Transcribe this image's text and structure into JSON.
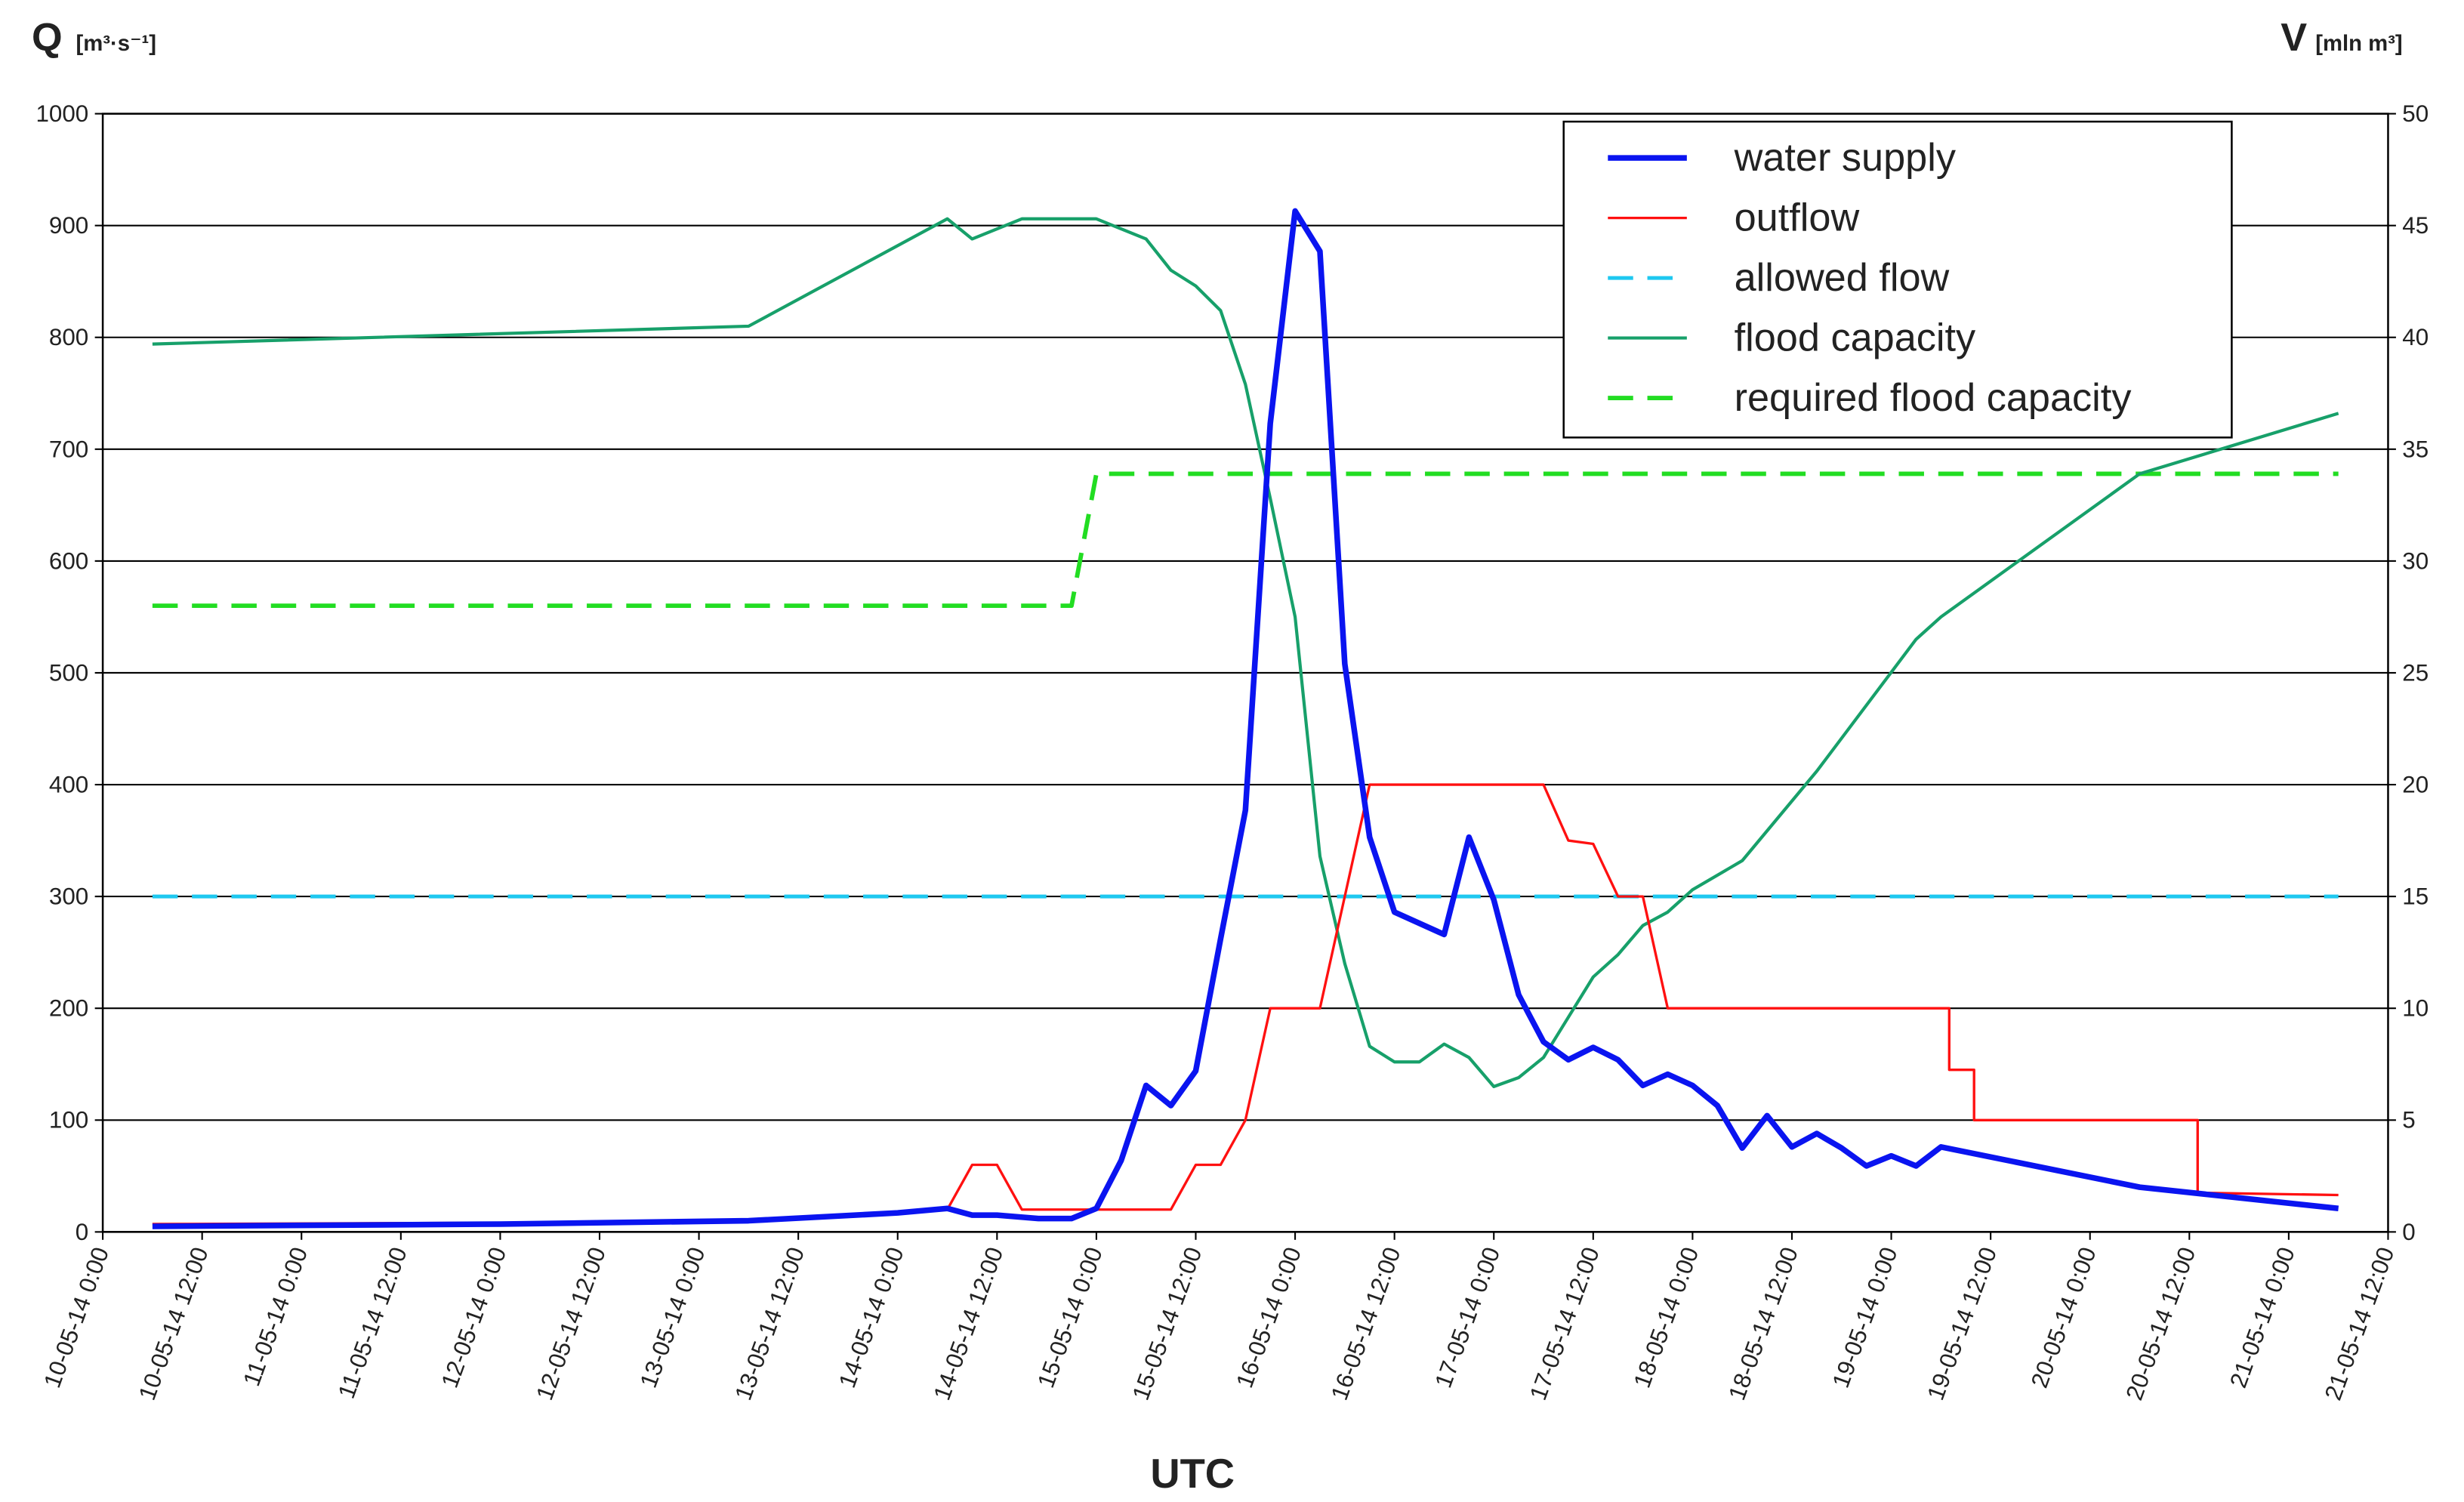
{
  "chart_data": {
    "type": "line",
    "y_label": {
      "symbol": "Q",
      "unit": "[m³·s⁻¹]"
    },
    "y2_label": {
      "symbol": "V",
      "unit": "[mln  m³]"
    },
    "x_label": "UTC",
    "xlim": [
      "10-05-14 0:00",
      "21-05-14 12:00"
    ],
    "xticks": [
      "10-05-14 0:00",
      "10-05-14 12:00",
      "11-05-14 0:00",
      "11-05-14 12:00",
      "12-05-14 0:00",
      "12-05-14 12:00",
      "13-05-14 0:00",
      "13-05-14 12:00",
      "14-05-14 0:00",
      "14-05-14 12:00",
      "15-05-14 0:00",
      "15-05-14 12:00",
      "16-05-14 0:00",
      "16-05-14 12:00",
      "17-05-14 0:00",
      "17-05-14 12:00",
      "18-05-14 0:00",
      "18-05-14 12:00",
      "19-05-14 0:00",
      "19-05-14 12:00",
      "20-05-14 0:00",
      "20-05-14 12:00",
      "21-05-14 0:00",
      "21-05-14 12:00"
    ],
    "ylim": [
      0,
      1000
    ],
    "yticks": [
      0,
      100,
      200,
      300,
      400,
      500,
      600,
      700,
      800,
      900,
      1000
    ],
    "y2lim": [
      0,
      50
    ],
    "y2ticks": [
      0,
      5,
      10,
      15,
      20,
      25,
      30,
      35,
      40,
      45,
      50
    ],
    "grid": true,
    "legend": "upper right",
    "series": [
      {
        "name": "water supply",
        "color": "#0a14f0",
        "width": 3.6,
        "dashed": false,
        "x": [
          "10-05-14 6:00",
          "12-05-14 0:00",
          "13-05-14 6:00",
          "14-05-14 0:00",
          "14-05-14 6:00",
          "14-05-14 9:00",
          "14-05-14 12:00",
          "14-05-14 17:00",
          "14-05-14 21:00",
          "15-05-14 0:00",
          "15-05-14 3:00",
          "15-05-14 6:00",
          "15-05-14 9:00",
          "15-05-14 12:00",
          "15-05-14 15:00",
          "15-05-14 18:00",
          "15-05-14 21:00",
          "16-05-14 0:00",
          "16-05-14 3:00",
          "16-05-14 6:00",
          "16-05-14 9:00",
          "16-05-14 12:00",
          "16-05-14 18:00",
          "16-05-14 21:00",
          "17-05-14 0:00",
          "17-05-14 3:00",
          "17-05-14 6:00",
          "17-05-14 9:00",
          "17-05-14 12:00",
          "17-05-14 15:00",
          "17-05-14 18:00",
          "17-05-14 21:00",
          "18-05-14 0:00",
          "18-05-14 3:00",
          "18-05-14 6:00",
          "18-05-14 9:00",
          "18-05-14 12:00",
          "18-05-14 15:00",
          "18-05-14 18:00",
          "18-05-14 21:00",
          "19-05-14 0:00",
          "19-05-14 3:00",
          "19-05-14 6:00",
          "20-05-14 6:00",
          "21-05-14 6:00"
        ],
        "values": [
          5,
          7,
          10,
          17,
          21,
          15,
          15,
          12,
          12,
          21,
          64,
          131,
          113,
          144,
          262,
          377,
          723,
          913,
          877,
          508,
          353,
          286,
          266,
          353,
          297,
          212,
          170,
          154,
          165,
          154,
          131,
          141,
          131,
          113,
          75,
          104,
          76,
          88,
          75,
          59,
          68,
          59,
          76,
          40,
          21
        ]
      },
      {
        "name": "outflow",
        "color": "#ff1010",
        "width": 1.6,
        "dashed": false,
        "x": [
          "10-05-14 6:00",
          "13-05-14 6:00",
          "14-05-14 6:00",
          "14-05-14 9:00",
          "14-05-14 12:00",
          "14-05-14 15:00",
          "15-05-14 9:00",
          "15-05-14 12:00",
          "15-05-14 15:00",
          "15-05-14 18:00",
          "15-05-14 21:00",
          "16-05-14 3:00",
          "16-05-14 9:00",
          "17-05-14 6:00",
          "17-05-14 9:00",
          "17-05-14 12:00",
          "17-05-14 15:00",
          "17-05-14 18:00",
          "17-05-14 21:00",
          "19-05-14 7:00",
          "19-05-14 7:00",
          "19-05-14 10:00",
          "19-05-14 10:00",
          "20-05-14 13:00",
          "20-05-14 13:00",
          "21-05-14 6:00"
        ],
        "values": [
          7,
          9,
          20,
          60,
          60,
          20,
          20,
          60,
          60,
          100,
          200,
          200,
          400,
          400,
          350,
          347,
          300,
          300,
          200,
          200,
          145,
          145,
          100,
          100,
          35,
          33
        ]
      },
      {
        "name": "allowed flow",
        "color": "#1ec8f0",
        "width": 2.4,
        "dashed": true,
        "x": [
          "10-05-14 6:00",
          "21-05-14 6:00"
        ],
        "values": [
          300,
          300
        ]
      },
      {
        "name": "flood capacity",
        "color": "#17a06a",
        "width": 2,
        "dashed": false,
        "axis": "y2",
        "x": [
          "10-05-14 6:00",
          "13-05-14 6:00",
          "14-05-14 6:00",
          "14-05-14 9:00",
          "14-05-14 15:00",
          "14-05-14 18:00",
          "15-05-14 0:00",
          "15-05-14 6:00",
          "15-05-14 9:00",
          "15-05-14 12:00",
          "15-05-14 15:00",
          "15-05-14 18:00",
          "15-05-14 21:00",
          "16-05-14 0:00",
          "16-05-14 3:00",
          "16-05-14 6:00",
          "16-05-14 9:00",
          "16-05-14 12:00",
          "16-05-14 15:00",
          "16-05-14 18:00",
          "16-05-14 21:00",
          "17-05-14 0:00",
          "17-05-14 3:00",
          "17-05-14 6:00",
          "17-05-14 9:00",
          "17-05-14 12:00",
          "17-05-14 15:00",
          "17-05-14 18:00",
          "17-05-14 21:00",
          "18-05-14 0:00",
          "18-05-14 6:00",
          "18-05-14 15:00",
          "19-05-14 3:00",
          "19-05-14 6:00",
          "20-05-14 6:00",
          "21-05-14 6:00"
        ],
        "values": [
          39.7,
          40.5,
          45.3,
          44.4,
          45.3,
          45.3,
          45.3,
          44.4,
          43,
          42.3,
          41.2,
          37.9,
          32.8,
          27.5,
          16.8,
          12,
          8.3,
          7.6,
          7.6,
          8.4,
          7.8,
          6.5,
          6.9,
          7.8,
          9.6,
          11.4,
          12.4,
          13.7,
          14.3,
          15.3,
          16.6,
          20.6,
          26.5,
          27.5,
          33.9,
          36.6
        ]
      },
      {
        "name": "required flood capacity",
        "color": "#22dd22",
        "width": 2.8,
        "dashed": true,
        "axis": "y2",
        "x": [
          "10-05-14 6:00",
          "14-05-14 21:00",
          "15-05-14 0:00",
          "21-05-14 6:00"
        ],
        "values": [
          28,
          28,
          33.9,
          33.9
        ]
      }
    ]
  }
}
